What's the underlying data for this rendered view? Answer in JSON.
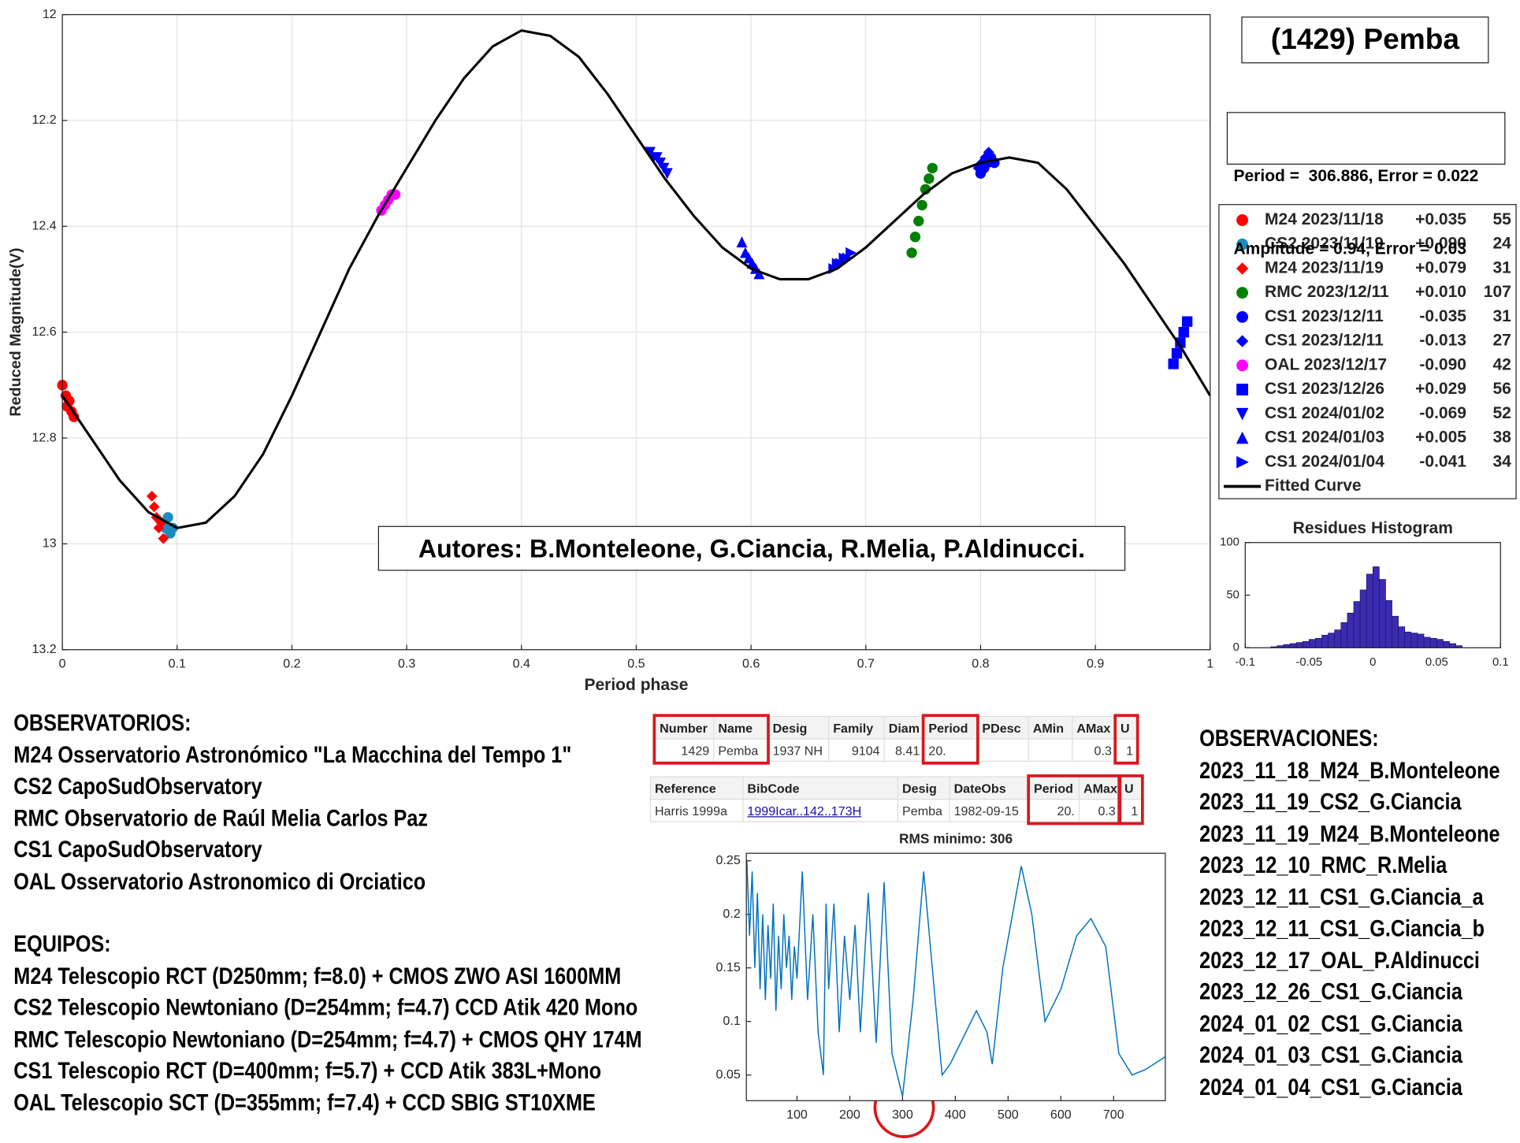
{
  "chart_data": [
    {
      "type": "scatter",
      "xlabel": "Period phase",
      "ylabel": "Reduced Magnitude(V)",
      "xlim": [
        0,
        1
      ],
      "ylim": [
        12,
        13.2
      ],
      "y_reversed": true,
      "xticks": [
        0,
        0.1,
        0.2,
        0.3,
        0.4,
        0.5,
        0.6,
        0.7,
        0.8,
        0.9,
        1
      ],
      "yticks": [
        12,
        12.2,
        12.4,
        12.6,
        12.8,
        13,
        13.2
      ],
      "grid": true,
      "legend": "east",
      "series": [
        {
          "name": "M24 2023/11/18",
          "offset": "+0.035",
          "count": 55,
          "color": "#ff0000",
          "marker": "circle",
          "x": [
            0.0,
            0.003,
            0.006,
            0.008,
            0.004,
            0.01
          ],
          "values": [
            12.7,
            12.72,
            12.73,
            12.75,
            12.74,
            12.76
          ]
        },
        {
          "name": "CS2 2023/11/19",
          "offset": "+0.090",
          "count": 24,
          "color": "#1f8ac0",
          "marker": "circle",
          "x": [
            0.088,
            0.09,
            0.092,
            0.094,
            0.096
          ],
          "values": [
            12.96,
            12.97,
            12.95,
            12.98,
            12.97
          ]
        },
        {
          "name": "M24 2023/11/19",
          "offset": "+0.079",
          "count": 31,
          "color": "#ff0000",
          "marker": "diamond",
          "x": [
            0.078,
            0.08,
            0.082,
            0.084,
            0.086,
            0.088
          ],
          "values": [
            12.91,
            12.93,
            12.95,
            12.97,
            12.96,
            12.99
          ]
        },
        {
          "name": "RMC 2023/12/11",
          "offset": "+0.010",
          "count": 107,
          "color": "#008000",
          "marker": "circle",
          "x": [
            0.74,
            0.743,
            0.746,
            0.749,
            0.752,
            0.755,
            0.758
          ],
          "values": [
            12.45,
            12.42,
            12.39,
            12.36,
            12.33,
            12.31,
            12.29
          ]
        },
        {
          "name": "CS1 2023/12/11",
          "offset": "-0.035",
          "count": 31,
          "color": "#0000ff",
          "marker": "circle",
          "x": [
            0.8,
            0.803,
            0.806,
            0.809,
            0.812
          ],
          "values": [
            12.3,
            12.29,
            12.28,
            12.27,
            12.28
          ]
        },
        {
          "name": "CS1 2023/12/11",
          "offset": "-0.013",
          "count": 27,
          "color": "#0000ff",
          "marker": "diamond",
          "x": [
            0.798,
            0.801,
            0.804,
            0.807
          ],
          "values": [
            12.29,
            12.28,
            12.27,
            12.26
          ]
        },
        {
          "name": "OAL 2023/12/17",
          "offset": "-0.090",
          "count": 42,
          "color": "#ff00ff",
          "marker": "circle",
          "x": [
            0.278,
            0.281,
            0.284,
            0.287,
            0.29
          ],
          "values": [
            12.37,
            12.36,
            12.35,
            12.34,
            12.34
          ]
        },
        {
          "name": "CS1 2023/12/26",
          "offset": "+0.029",
          "count": 56,
          "color": "#0000ff",
          "marker": "square",
          "x": [
            0.968,
            0.971,
            0.974,
            0.977,
            0.98
          ],
          "values": [
            12.66,
            12.64,
            12.62,
            12.6,
            12.58
          ]
        },
        {
          "name": "CS1 2024/01/02",
          "offset": "-0.069",
          "count": 52,
          "color": "#0000ff",
          "marker": "triangle-down",
          "x": [
            0.512,
            0.515,
            0.518,
            0.521,
            0.524,
            0.527
          ],
          "values": [
            12.26,
            12.27,
            12.27,
            12.28,
            12.29,
            12.3
          ]
        },
        {
          "name": "CS1 2024/01/03",
          "offset": "+0.005",
          "count": 38,
          "color": "#0000ff",
          "marker": "triangle-up",
          "x": [
            0.592,
            0.595,
            0.598,
            0.601,
            0.604,
            0.607
          ],
          "values": [
            12.43,
            12.45,
            12.46,
            12.47,
            12.48,
            12.49
          ]
        },
        {
          "name": "CS1 2024/01/04",
          "offset": "-0.041",
          "count": 34,
          "color": "#0000ff",
          "marker": "triangle-right",
          "x": [
            0.672,
            0.675,
            0.678,
            0.681,
            0.684,
            0.687
          ],
          "values": [
            12.48,
            12.47,
            12.47,
            12.46,
            12.46,
            12.45
          ]
        },
        {
          "name": "Fitted Curve",
          "color": "#000000",
          "x": [
            0,
            0.025,
            0.05,
            0.075,
            0.1,
            0.125,
            0.15,
            0.175,
            0.2,
            0.225,
            0.25,
            0.275,
            0.3,
            0.325,
            0.35,
            0.375,
            0.4,
            0.425,
            0.45,
            0.475,
            0.5,
            0.525,
            0.55,
            0.575,
            0.6,
            0.625,
            0.65,
            0.675,
            0.7,
            0.725,
            0.75,
            0.775,
            0.8,
            0.825,
            0.85,
            0.875,
            0.9,
            0.925,
            0.95,
            0.975,
            1
          ],
          "values": [
            12.72,
            12.8,
            12.88,
            12.94,
            12.97,
            12.96,
            12.91,
            12.83,
            12.72,
            12.6,
            12.48,
            12.38,
            12.29,
            12.2,
            12.12,
            12.06,
            12.03,
            12.04,
            12.08,
            12.15,
            12.23,
            12.31,
            12.38,
            12.44,
            12.48,
            12.5,
            12.5,
            12.48,
            12.44,
            12.39,
            12.34,
            12.3,
            12.28,
            12.27,
            12.28,
            12.33,
            12.4,
            12.47,
            12.55,
            12.63,
            12.72
          ]
        }
      ]
    },
    {
      "type": "histogram",
      "title": "Residues Histogram",
      "xlim": [
        -0.1,
        0.1
      ],
      "ylim": [
        0,
        100
      ],
      "xticks": [
        -0.1,
        -0.05,
        0,
        0.05,
        0.1
      ],
      "yticks": [
        0,
        50,
        100
      ],
      "grid": false,
      "color": "#3a2bb0",
      "bins": [
        -0.08,
        -0.075,
        -0.07,
        -0.065,
        -0.06,
        -0.055,
        -0.05,
        -0.045,
        -0.04,
        -0.035,
        -0.03,
        -0.025,
        -0.02,
        -0.015,
        -0.01,
        -0.005,
        0,
        0.005,
        0.01,
        0.015,
        0.02,
        0.025,
        0.03,
        0.035,
        0.04,
        0.045,
        0.05,
        0.055,
        0.06,
        0.065,
        0.07
      ],
      "counts": [
        1,
        2,
        3,
        4,
        5,
        6,
        8,
        9,
        12,
        14,
        17,
        24,
        33,
        44,
        55,
        70,
        77,
        65,
        45,
        30,
        20,
        15,
        14,
        13,
        10,
        9,
        8,
        6,
        4,
        2
      ]
    },
    {
      "type": "line",
      "title": "RMS minimo: 306",
      "xlim": [
        4,
        798
      ],
      "ylim": [
        0.026,
        0.257
      ],
      "xticks": [
        100,
        200,
        300,
        400,
        500,
        600,
        700
      ],
      "yticks": [
        0.05,
        0.1,
        0.15,
        0.2,
        0.25
      ],
      "grid": false,
      "color": "#0072bd",
      "x": [
        5,
        10,
        15,
        20,
        25,
        30,
        35,
        40,
        45,
        50,
        55,
        60,
        65,
        70,
        75,
        80,
        85,
        90,
        95,
        100,
        110,
        120,
        130,
        140,
        150,
        155,
        160,
        170,
        180,
        190,
        200,
        210,
        220,
        235,
        250,
        265,
        280,
        300,
        320,
        340,
        360,
        375,
        390,
        410,
        440,
        460,
        470,
        490,
        525,
        545,
        570,
        600,
        630,
        657,
        685,
        710,
        735,
        760,
        798
      ],
      "values": [
        0.25,
        0.18,
        0.24,
        0.15,
        0.22,
        0.13,
        0.2,
        0.12,
        0.19,
        0.14,
        0.21,
        0.11,
        0.18,
        0.13,
        0.2,
        0.15,
        0.18,
        0.12,
        0.17,
        0.14,
        0.24,
        0.12,
        0.2,
        0.09,
        0.05,
        0.21,
        0.13,
        0.21,
        0.09,
        0.18,
        0.12,
        0.19,
        0.09,
        0.22,
        0.08,
        0.23,
        0.07,
        0.03,
        0.12,
        0.24,
        0.13,
        0.05,
        0.06,
        0.08,
        0.11,
        0.09,
        0.06,
        0.15,
        0.245,
        0.2,
        0.1,
        0.13,
        0.18,
        0.196,
        0.17,
        0.07,
        0.05,
        0.055,
        0.067
      ]
    }
  ],
  "header": {
    "title": "(1429) Pemba",
    "fit_summary": [
      "Period =  306.886, Error = 0.022",
      "Amplitude = 0.94, Error = 0.03"
    ],
    "authors": "Autores: B.Monteleone, G.Ciancia, R.Melia, P.Aldinucci."
  },
  "observatories": {
    "heading": "OBSERVATORIOS:",
    "lines": [
      "M24 Osservatorio Astronómico \"La Macchina del Tempo 1\"",
      "CS2 CapoSudObservatory",
      "RMC Observatorio de Raúl Melia Carlos Paz",
      "CS1 CapoSudObservatory",
      "OAL Osservatorio Astronomico di Orciatico"
    ]
  },
  "equipment": {
    "heading": "EQUIPOS:",
    "lines": [
      "M24 Telescopio RCT (D250mm; f=8.0) + CMOS ZWO ASI 1600MM",
      "CS2 Telescopio Newtoniano (D=254mm; f=4.7) CCD Atik 420 Mono",
      "RMC Telescopio Newtoniano (D=254mm; f=4.7) + CMOS QHY 174M",
      "CS1 Telescopio RCT (D=400mm; f=5.7) + CCD Atik 383L+Mono",
      "OAL Telescopio SCT (D=355mm; f=7.4) + CCD SBIG ST10XME"
    ]
  },
  "observations": {
    "heading": "OBSERVACIONES:",
    "lines": [
      "2023_11_18_M24_B.Monteleone",
      "2023_11_19_CS2_G.Ciancia",
      "2023_11_19_M24_B.Monteleone",
      "2023_12_10_RMC_R.Melia",
      "2023_12_11_CS1_G.Ciancia_a",
      "2023_12_11_CS1_G.Ciancia_b",
      "2023_12_17_OAL_P.Aldinucci",
      "2023_12_26_CS1_G.Ciancia",
      "2024_01_02_CS1_G.Ciancia",
      "2024_01_03_CS1_G.Ciancia",
      "2024_01_04_CS1_G.Ciancia"
    ]
  },
  "tables": [
    {
      "header": [
        "Number",
        "Name",
        "Desig",
        "Family",
        "Diam",
        "Period",
        "PDesc",
        "AMin",
        "AMax",
        "U"
      ],
      "rows": [
        [
          "1429",
          "Pemba",
          "1937 NH",
          "9104",
          "8.41",
          "20.",
          null,
          null,
          "0.3",
          "1"
        ]
      ]
    },
    {
      "header": [
        "Reference",
        "BibCode",
        "Desig",
        "DateObs",
        "Period",
        "AMax",
        "U"
      ],
      "rows": [
        [
          "Harris 1999a",
          "1999Icar..142..173H",
          "Pemba",
          "1982-09-15",
          "20.",
          "0.3",
          "1"
        ]
      ]
    }
  ]
}
